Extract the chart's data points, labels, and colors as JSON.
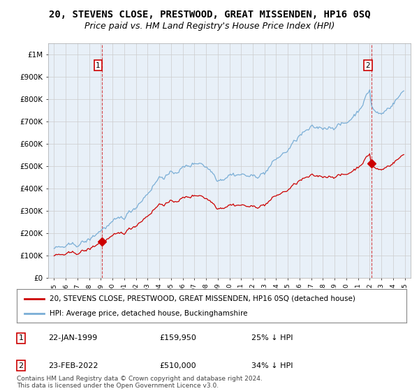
{
  "title": "20, STEVENS CLOSE, PRESTWOOD, GREAT MISSENDEN, HP16 0SQ",
  "subtitle": "Price paid vs. HM Land Registry's House Price Index (HPI)",
  "legend_label_red": "20, STEVENS CLOSE, PRESTWOOD, GREAT MISSENDEN, HP16 0SQ (detached house)",
  "legend_label_blue": "HPI: Average price, detached house, Buckinghamshire",
  "footnote": "Contains HM Land Registry data © Crown copyright and database right 2024.\nThis data is licensed under the Open Government Licence v3.0.",
  "sale1_label": "1",
  "sale1_date": "22-JAN-1999",
  "sale1_price": "£159,950",
  "sale1_hpi": "25% ↓ HPI",
  "sale2_label": "2",
  "sale2_date": "23-FEB-2022",
  "sale2_price": "£510,000",
  "sale2_hpi": "34% ↓ HPI",
  "sale1_x": 1999.07,
  "sale1_y": 159950,
  "sale2_x": 2022.15,
  "sale2_y": 510000,
  "ylim": [
    0,
    1050000
  ],
  "xlim": [
    1994.5,
    2025.5
  ],
  "red_color": "#cc0000",
  "blue_color": "#7aaed6",
  "vline_color": "#cc0000",
  "marker_color": "#cc0000",
  "grid_color": "#cccccc",
  "plot_bg_color": "#e8f0f8",
  "bg_color": "#ffffff",
  "title_fontsize": 10,
  "subtitle_fontsize": 9,
  "yticks": [
    0,
    100000,
    200000,
    300000,
    400000,
    500000,
    600000,
    700000,
    800000,
    900000,
    1000000
  ],
  "ytick_labels": [
    "£0",
    "£100K",
    "£200K",
    "£300K",
    "£400K",
    "£500K",
    "£600K",
    "£700K",
    "£800K",
    "£900K",
    "£1M"
  ]
}
